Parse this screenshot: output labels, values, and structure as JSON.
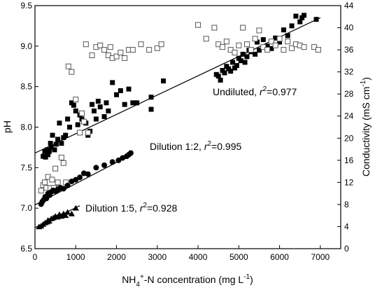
{
  "chart_data": {
    "type": "scatter",
    "title": "",
    "xlabel": "NH4+-N concentration (mg L-1)",
    "ylabel_left": "pH",
    "ylabel_right": "Conductivity (mS cm-1)",
    "xlim": [
      0,
      7500
    ],
    "ylim_left": [
      6.5,
      9.5
    ],
    "ylim_right": [
      0,
      44
    ],
    "x_ticks": [
      "0",
      "1000",
      "2000",
      "3000",
      "4000",
      "5000",
      "6000",
      "7000"
    ],
    "y_left_ticks": [
      "6.5",
      "7.0",
      "7.5",
      "8.0",
      "8.5",
      "9.0",
      "9.5"
    ],
    "y_right_ticks": [
      "0",
      "4",
      "8",
      "12",
      "16",
      "20",
      "24",
      "28",
      "32",
      "36",
      "40",
      "44"
    ],
    "grid": false,
    "legend": "none",
    "annotations": [
      {
        "id": "undiluted",
        "prefix": "Undiluted, ",
        "r": "r",
        "sup": "2",
        "value": "=0.977"
      },
      {
        "id": "dil12",
        "prefix": "Dilution 1:2, ",
        "r": "r",
        "sup": "2",
        "value": "=0.995"
      },
      {
        "id": "dil15",
        "prefix": "Dilution 1:5, ",
        "r": "r",
        "sup": "2",
        "value": "=0.928"
      }
    ],
    "series": [
      {
        "axis": "left",
        "marker": "filled-square",
        "points": [
          [
            200,
            7.64
          ],
          [
            240,
            7.7
          ],
          [
            260,
            7.63
          ],
          [
            300,
            7.72
          ],
          [
            320,
            7.66
          ],
          [
            350,
            7.7
          ],
          [
            380,
            7.8
          ],
          [
            400,
            7.75
          ],
          [
            430,
            7.9
          ],
          [
            480,
            7.72
          ],
          [
            520,
            7.79
          ],
          [
            560,
            7.85
          ],
          [
            600,
            8.05
          ],
          [
            650,
            7.8
          ],
          [
            700,
            7.87
          ],
          [
            750,
            7.9
          ],
          [
            800,
            8.1
          ],
          [
            850,
            8.0
          ],
          [
            900,
            8.3
          ],
          [
            950,
            8.27
          ],
          [
            1000,
            8.2
          ],
          [
            1050,
            8.03
          ],
          [
            1100,
            8.15
          ],
          [
            1150,
            8.1
          ],
          [
            1200,
            8.07
          ],
          [
            1250,
            8.05
          ],
          [
            1300,
            7.9
          ],
          [
            1350,
            7.95
          ],
          [
            1400,
            8.28
          ],
          [
            1450,
            8.2
          ],
          [
            1500,
            8.1
          ],
          [
            1550,
            8.32
          ],
          [
            1600,
            8.25
          ],
          [
            1700,
            8.13
          ],
          [
            1750,
            8.3
          ],
          [
            1800,
            8.2
          ],
          [
            1900,
            8.55
          ],
          [
            2000,
            8.4
          ],
          [
            2100,
            8.45
          ],
          [
            2200,
            8.28
          ],
          [
            2300,
            8.47
          ],
          [
            2400,
            8.3
          ],
          [
            2500,
            8.3
          ],
          [
            2850,
            8.22
          ],
          [
            2850,
            8.37
          ],
          [
            3150,
            8.57
          ],
          [
            4450,
            8.65
          ],
          [
            4500,
            8.63
          ],
          [
            4550,
            8.58
          ],
          [
            4600,
            8.7
          ],
          [
            4650,
            8.67
          ],
          [
            4700,
            8.75
          ],
          [
            4750,
            8.72
          ],
          [
            4800,
            8.69
          ],
          [
            4850,
            8.8
          ],
          [
            4900,
            8.73
          ],
          [
            4950,
            8.76
          ],
          [
            5000,
            8.85
          ],
          [
            5050,
            8.82
          ],
          [
            5100,
            8.9
          ],
          [
            5150,
            8.8
          ],
          [
            5200,
            8.87
          ],
          [
            5250,
            8.95
          ],
          [
            5300,
            8.93
          ],
          [
            5400,
            8.9
          ],
          [
            5450,
            9.05
          ],
          [
            5500,
            8.95
          ],
          [
            5600,
            9.08
          ],
          [
            5700,
            9.0
          ],
          [
            5800,
            8.97
          ],
          [
            5900,
            9.1
          ],
          [
            6000,
            9.05
          ],
          [
            6100,
            9.2
          ],
          [
            6200,
            9.13
          ],
          [
            6300,
            9.25
          ],
          [
            6400,
            9.37
          ],
          [
            6500,
            9.3
          ],
          [
            6550,
            9.35
          ],
          [
            6600,
            9.38
          ],
          [
            6900,
            9.33
          ]
        ]
      },
      {
        "axis": "right",
        "marker": "open-square",
        "points": [
          [
            150,
            10.5
          ],
          [
            200,
            11.5
          ],
          [
            240,
            12.0
          ],
          [
            280,
            11.0
          ],
          [
            320,
            13.0
          ],
          [
            380,
            11.0
          ],
          [
            420,
            12.5
          ],
          [
            460,
            11.0
          ],
          [
            500,
            14.5
          ],
          [
            560,
            12.0
          ],
          [
            600,
            11.0
          ],
          [
            650,
            16.5
          ],
          [
            700,
            15.5
          ],
          [
            760,
            12.0
          ],
          [
            820,
            33.0
          ],
          [
            900,
            32.0
          ],
          [
            1000,
            27.0
          ],
          [
            1100,
            21.0
          ],
          [
            1150,
            24.5
          ],
          [
            1200,
            23.0
          ],
          [
            1250,
            37.0
          ],
          [
            1300,
            21.0
          ],
          [
            1400,
            35.0
          ],
          [
            1500,
            36.5
          ],
          [
            1600,
            36.8
          ],
          [
            1700,
            36.0
          ],
          [
            1800,
            35.0
          ],
          [
            1850,
            36.5
          ],
          [
            1900,
            34.5
          ],
          [
            2000,
            34.8
          ],
          [
            2100,
            35.5
          ],
          [
            2200,
            34.5
          ],
          [
            2300,
            36.0
          ],
          [
            2400,
            36.0
          ],
          [
            2600,
            37.0
          ],
          [
            2800,
            36.0
          ],
          [
            3000,
            36.3
          ],
          [
            3100,
            37.0
          ],
          [
            4000,
            40.5
          ],
          [
            4200,
            38.0
          ],
          [
            4400,
            40.0
          ],
          [
            4500,
            37.0
          ],
          [
            4600,
            36.5
          ],
          [
            4700,
            37.5
          ],
          [
            4800,
            36.0
          ],
          [
            4900,
            35.5
          ],
          [
            5000,
            36.8
          ],
          [
            5100,
            40.0
          ],
          [
            5200,
            37.0
          ],
          [
            5300,
            36.0
          ],
          [
            5400,
            38.0
          ],
          [
            5500,
            39.5
          ],
          [
            5600,
            36.5
          ],
          [
            5700,
            36.0
          ],
          [
            5800,
            37.5
          ],
          [
            5900,
            36.8
          ],
          [
            6000,
            38.0
          ],
          [
            6100,
            36.0
          ],
          [
            6200,
            37.5
          ],
          [
            6300,
            36.3
          ],
          [
            6400,
            37.0
          ],
          [
            6500,
            36.8
          ],
          [
            6600,
            36.5
          ],
          [
            6850,
            36.5
          ],
          [
            6950,
            36.0
          ]
        ]
      },
      {
        "axis": "left",
        "marker": "filled-circle",
        "points": [
          [
            150,
            7.05
          ],
          [
            180,
            7.08
          ],
          [
            210,
            7.1
          ],
          [
            250,
            7.14
          ],
          [
            280,
            7.12
          ],
          [
            320,
            7.18
          ],
          [
            360,
            7.16
          ],
          [
            400,
            7.2
          ],
          [
            450,
            7.22
          ],
          [
            500,
            7.21
          ],
          [
            560,
            7.23
          ],
          [
            620,
            7.25
          ],
          [
            700,
            7.24
          ],
          [
            800,
            7.28
          ],
          [
            900,
            7.33
          ],
          [
            1000,
            7.35
          ],
          [
            1100,
            7.38
          ],
          [
            1200,
            7.43
          ],
          [
            1300,
            7.42
          ],
          [
            1500,
            7.5
          ],
          [
            1700,
            7.53
          ],
          [
            1900,
            7.57
          ],
          [
            2050,
            7.59
          ],
          [
            2150,
            7.62
          ],
          [
            2250,
            7.64
          ],
          [
            2300,
            7.66
          ],
          [
            2350,
            7.68
          ]
        ]
      },
      {
        "axis": "left",
        "marker": "filled-triangle",
        "points": [
          [
            100,
            6.77
          ],
          [
            150,
            6.78
          ],
          [
            200,
            6.8
          ],
          [
            250,
            6.82
          ],
          [
            300,
            6.83
          ],
          [
            320,
            6.85
          ],
          [
            350,
            6.84
          ],
          [
            400,
            6.87
          ],
          [
            450,
            6.88
          ],
          [
            500,
            6.9
          ],
          [
            550,
            6.89
          ],
          [
            600,
            6.92
          ],
          [
            650,
            6.9
          ],
          [
            700,
            6.93
          ],
          [
            750,
            6.91
          ],
          [
            800,
            6.95
          ],
          [
            900,
            6.93
          ],
          [
            1000,
            7.0
          ]
        ]
      }
    ],
    "fit_lines": [
      {
        "axis": "left",
        "x": [
          0,
          7000
        ],
        "y": [
          7.68,
          9.35
        ]
      },
      {
        "axis": "left",
        "x": [
          0,
          2400
        ],
        "y": [
          7.04,
          7.67
        ]
      },
      {
        "axis": "left",
        "x": [
          0,
          1100
        ],
        "y": [
          6.76,
          7.03
        ]
      }
    ]
  }
}
